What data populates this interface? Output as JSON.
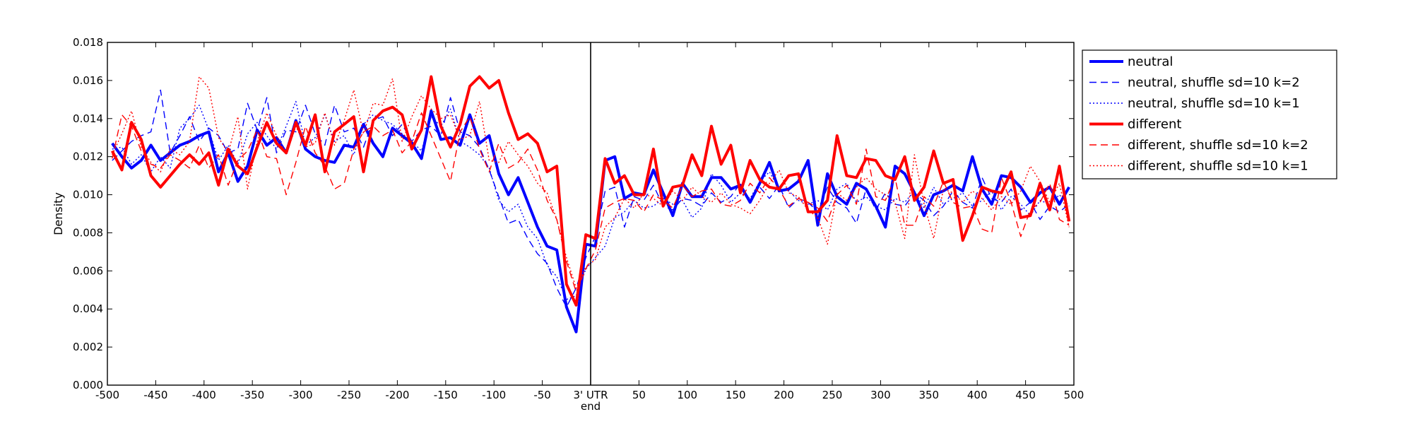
{
  "chart_data": {
    "type": "line",
    "title": "",
    "xlabel": "",
    "ylabel": "Density",
    "xlim": [
      -500,
      500
    ],
    "ylim": [
      0,
      0.018
    ],
    "x_ticks": [
      -500,
      -450,
      -400,
      -350,
      -300,
      -250,
      -200,
      -150,
      -100,
      -50,
      0,
      50,
      100,
      150,
      200,
      250,
      300,
      350,
      400,
      450,
      500
    ],
    "x_tick_labels": [
      "-500",
      "-450",
      "-400",
      "-350",
      "-300",
      "-250",
      "-200",
      "-150",
      "-100",
      "-50",
      "3' UTR\nend",
      "50",
      "100",
      "150",
      "200",
      "250",
      "300",
      "350",
      "400",
      "450",
      "500"
    ],
    "y_ticks": [
      0,
      0.002,
      0.004,
      0.006,
      0.008,
      0.01,
      0.012,
      0.014,
      0.016,
      0.018
    ],
    "y_tick_labels": [
      "0.000",
      "0.002",
      "0.004",
      "0.006",
      "0.008",
      "0.010",
      "0.012",
      "0.014",
      "0.016",
      "0.018"
    ],
    "vline_x": 0,
    "grid": false,
    "legend_position": "outside-right-top",
    "x": [
      -495,
      -485,
      -475,
      -465,
      -455,
      -445,
      -435,
      -425,
      -415,
      -405,
      -395,
      -385,
      -375,
      -365,
      -355,
      -345,
      -335,
      -325,
      -315,
      -305,
      -295,
      -285,
      -275,
      -265,
      -255,
      -245,
      -235,
      -225,
      -215,
      -205,
      -195,
      -185,
      -175,
      -165,
      -155,
      -145,
      -135,
      -125,
      -115,
      -105,
      -95,
      -85,
      -75,
      -65,
      -55,
      -45,
      -35,
      -25,
      -15,
      -5,
      5,
      15,
      25,
      35,
      45,
      55,
      65,
      75,
      85,
      95,
      105,
      115,
      125,
      135,
      145,
      155,
      165,
      175,
      185,
      195,
      205,
      215,
      225,
      235,
      245,
      255,
      265,
      275,
      285,
      295,
      305,
      315,
      325,
      335,
      345,
      355,
      365,
      375,
      385,
      395,
      405,
      415,
      425,
      435,
      445,
      455,
      465,
      475,
      485,
      495
    ],
    "series": [
      {
        "name": "neutral",
        "color": "#0000ff",
        "dash": "solid",
        "width": 4,
        "values": [
          0.0127,
          0.012,
          0.0114,
          0.0118,
          0.0126,
          0.0118,
          0.0122,
          0.0126,
          0.0128,
          0.0131,
          0.0133,
          0.0112,
          0.0122,
          0.0107,
          0.0115,
          0.0134,
          0.0126,
          0.013,
          0.0122,
          0.0139,
          0.0124,
          0.012,
          0.0118,
          0.0117,
          0.0126,
          0.0125,
          0.0137,
          0.0127,
          0.012,
          0.0135,
          0.0131,
          0.0127,
          0.0119,
          0.0144,
          0.0129,
          0.013,
          0.0126,
          0.0142,
          0.0127,
          0.0131,
          0.0111,
          0.01,
          0.0109,
          0.0096,
          0.0083,
          0.0073,
          0.0071,
          0.0041,
          0.0028,
          0.0074,
          0.0073,
          0.0118,
          0.012,
          0.0098,
          0.0101,
          0.01,
          0.0113,
          0.0101,
          0.0089,
          0.0106,
          0.0099,
          0.0099,
          0.0109,
          0.0109,
          0.0103,
          0.0105,
          0.0096,
          0.0106,
          0.0117,
          0.0102,
          0.0103,
          0.0107,
          0.0118,
          0.0084,
          0.0111,
          0.0099,
          0.0095,
          0.0106,
          0.0103,
          0.0094,
          0.0083,
          0.0115,
          0.0111,
          0.0101,
          0.0089,
          0.01,
          0.0102,
          0.0105,
          0.0102,
          0.012,
          0.0103,
          0.0095,
          0.011,
          0.0109,
          0.0104,
          0.0096,
          0.0101,
          0.0104,
          0.0095,
          0.0104
        ]
      },
      {
        "name": "neutral, shuffle sd=10 k=2",
        "color": "#0000ff",
        "dash": "dashed",
        "width": 1.4,
        "values": [
          0.0118,
          0.0123,
          0.0128,
          0.0131,
          0.0133,
          0.0155,
          0.0122,
          0.0131,
          0.0141,
          0.0128,
          0.0135,
          0.0131,
          0.0122,
          0.0124,
          0.0148,
          0.0134,
          0.0151,
          0.0122,
          0.0134,
          0.0133,
          0.0147,
          0.0132,
          0.0126,
          0.0147,
          0.0133,
          0.0135,
          0.0125,
          0.0139,
          0.0141,
          0.0131,
          0.0137,
          0.0128,
          0.0134,
          0.0136,
          0.0131,
          0.0151,
          0.0133,
          0.0131,
          0.0125,
          0.0113,
          0.0099,
          0.0085,
          0.0087,
          0.0077,
          0.0069,
          0.0064,
          0.0051,
          0.0041,
          0.0051,
          0.0067,
          0.0078,
          0.0102,
          0.0104,
          0.0083,
          0.0099,
          0.0097,
          0.0105,
          0.0094,
          0.0092,
          0.0098,
          0.0097,
          0.0094,
          0.0101,
          0.0096,
          0.0099,
          0.0106,
          0.0097,
          0.0104,
          0.0098,
          0.0105,
          0.0093,
          0.0098,
          0.0096,
          0.0091,
          0.0104,
          0.0096,
          0.0093,
          0.0085,
          0.0103,
          0.0092,
          0.0101,
          0.0095,
          0.0094,
          0.0101,
          0.0097,
          0.0089,
          0.0094,
          0.0102,
          0.0096,
          0.0093,
          0.0109,
          0.0098,
          0.0096,
          0.0103,
          0.0092,
          0.0096,
          0.0087,
          0.0094,
          0.0091,
          0.0095
        ]
      },
      {
        "name": "neutral, shuffle sd=10 k=1",
        "color": "#0000ff",
        "dash": "dotted",
        "width": 1.4,
        "values": [
          0.0124,
          0.0125,
          0.0116,
          0.0121,
          0.0112,
          0.012,
          0.0114,
          0.0135,
          0.014,
          0.0147,
          0.0134,
          0.0118,
          0.0126,
          0.0116,
          0.0132,
          0.0138,
          0.0131,
          0.0124,
          0.0136,
          0.0149,
          0.0126,
          0.013,
          0.0142,
          0.0128,
          0.0131,
          0.0121,
          0.0137,
          0.0142,
          0.0139,
          0.0137,
          0.0132,
          0.0128,
          0.0123,
          0.0141,
          0.0136,
          0.0145,
          0.0128,
          0.0125,
          0.0121,
          0.0114,
          0.0097,
          0.0091,
          0.0095,
          0.0083,
          0.0077,
          0.0063,
          0.0057,
          0.0045,
          0.0047,
          0.0061,
          0.0067,
          0.0073,
          0.0088,
          0.0091,
          0.0097,
          0.0093,
          0.0094,
          0.0098,
          0.0095,
          0.0097,
          0.0088,
          0.0093,
          0.0111,
          0.0105,
          0.0096,
          0.0101,
          0.0098,
          0.0107,
          0.0112,
          0.0103,
          0.0102,
          0.0097,
          0.0095,
          0.0097,
          0.0092,
          0.0103,
          0.0106,
          0.0096,
          0.0099,
          0.0094,
          0.0092,
          0.0098,
          0.0096,
          0.0102,
          0.0093,
          0.0104,
          0.0095,
          0.0098,
          0.0101,
          0.0094,
          0.0097,
          0.0102,
          0.0092,
          0.0099,
          0.0095,
          0.0089,
          0.0097,
          0.0095,
          0.01,
          0.0094
        ]
      },
      {
        "name": "different",
        "color": "#ff0000",
        "dash": "solid",
        "width": 4,
        "values": [
          0.0123,
          0.0113,
          0.0138,
          0.0129,
          0.011,
          0.0104,
          0.011,
          0.0116,
          0.0121,
          0.0116,
          0.0122,
          0.0105,
          0.0124,
          0.0115,
          0.0111,
          0.0125,
          0.0138,
          0.0127,
          0.0122,
          0.0138,
          0.0126,
          0.0142,
          0.0112,
          0.0133,
          0.0137,
          0.0141,
          0.0112,
          0.0139,
          0.0144,
          0.0146,
          0.0142,
          0.0124,
          0.0134,
          0.0162,
          0.0136,
          0.0125,
          0.0137,
          0.0157,
          0.0162,
          0.0156,
          0.016,
          0.0143,
          0.0129,
          0.0132,
          0.0127,
          0.0112,
          0.0115,
          0.0053,
          0.0042,
          0.0079,
          0.0077,
          0.0119,
          0.0106,
          0.011,
          0.01,
          0.01,
          0.0124,
          0.0094,
          0.0104,
          0.0105,
          0.0121,
          0.011,
          0.0136,
          0.0116,
          0.0126,
          0.0101,
          0.0118,
          0.0108,
          0.0104,
          0.0103,
          0.011,
          0.0111,
          0.0091,
          0.0091,
          0.0097,
          0.0131,
          0.011,
          0.0109,
          0.0119,
          0.0118,
          0.011,
          0.0108,
          0.012,
          0.0097,
          0.0104,
          0.0123,
          0.0106,
          0.0108,
          0.0076,
          0.0089,
          0.0104,
          0.0102,
          0.0101,
          0.0112,
          0.0088,
          0.0089,
          0.0106,
          0.0092,
          0.0115,
          0.0086
        ]
      },
      {
        "name": "different, shuffle sd=10 k=2",
        "color": "#ff0000",
        "dash": "dashed",
        "width": 1.4,
        "values": [
          0.0119,
          0.0142,
          0.0136,
          0.0123,
          0.0116,
          0.0114,
          0.0121,
          0.0118,
          0.0114,
          0.0126,
          0.0114,
          0.0121,
          0.0105,
          0.0118,
          0.0123,
          0.0134,
          0.012,
          0.0119,
          0.01,
          0.0117,
          0.0136,
          0.0122,
          0.0115,
          0.0103,
          0.0106,
          0.0124,
          0.0133,
          0.0136,
          0.0131,
          0.0134,
          0.0122,
          0.0128,
          0.0143,
          0.0131,
          0.0119,
          0.0107,
          0.0133,
          0.0141,
          0.0124,
          0.0112,
          0.0127,
          0.0114,
          0.0117,
          0.0124,
          0.0113,
          0.0097,
          0.0087,
          0.0065,
          0.0049,
          0.0061,
          0.0071,
          0.0093,
          0.0096,
          0.0098,
          0.0097,
          0.0091,
          0.01,
          0.0097,
          0.0093,
          0.0105,
          0.0099,
          0.0102,
          0.0103,
          0.0095,
          0.0094,
          0.0097,
          0.0106,
          0.0101,
          0.0109,
          0.0103,
          0.0094,
          0.0098,
          0.0096,
          0.0093,
          0.0086,
          0.01,
          0.0105,
          0.0095,
          0.0124,
          0.0099,
          0.0097,
          0.0109,
          0.0084,
          0.0084,
          0.0099,
          0.0094,
          0.0107,
          0.0096,
          0.0093,
          0.0094,
          0.0082,
          0.008,
          0.0109,
          0.0096,
          0.0078,
          0.0092,
          0.0096,
          0.0106,
          0.0087,
          0.0084
        ]
      },
      {
        "name": "different, shuffle sd=10 k=1",
        "color": "#ff0000",
        "dash": "dotted",
        "width": 1.4,
        "values": [
          0.0121,
          0.0132,
          0.0144,
          0.0125,
          0.0117,
          0.0112,
          0.0124,
          0.0121,
          0.0128,
          0.0162,
          0.0156,
          0.013,
          0.0122,
          0.0141,
          0.0103,
          0.0128,
          0.0143,
          0.0131,
          0.0121,
          0.0136,
          0.0125,
          0.0127,
          0.0143,
          0.0126,
          0.0139,
          0.0155,
          0.0132,
          0.0148,
          0.0147,
          0.0161,
          0.0128,
          0.0141,
          0.0152,
          0.0145,
          0.014,
          0.0142,
          0.0129,
          0.0131,
          0.0149,
          0.0118,
          0.0117,
          0.0128,
          0.0121,
          0.0115,
          0.0106,
          0.0101,
          0.0087,
          0.0067,
          0.0051,
          0.0062,
          0.0066,
          0.0083,
          0.0088,
          0.0098,
          0.0093,
          0.0101,
          0.0098,
          0.0094,
          0.0102,
          0.0097,
          0.0104,
          0.0099,
          0.0096,
          0.0101,
          0.0095,
          0.0093,
          0.009,
          0.0097,
          0.0106,
          0.0113,
          0.0101,
          0.0099,
          0.0092,
          0.0088,
          0.0074,
          0.0101,
          0.0097,
          0.0104,
          0.0109,
          0.0103,
          0.01,
          0.0096,
          0.0077,
          0.0121,
          0.0095,
          0.0077,
          0.0103,
          0.0101,
          0.0096,
          0.0102,
          0.0098,
          0.0092,
          0.0099,
          0.0095,
          0.0102,
          0.0115,
          0.0107,
          0.0096,
          0.0106,
          0.0083
        ]
      }
    ]
  }
}
